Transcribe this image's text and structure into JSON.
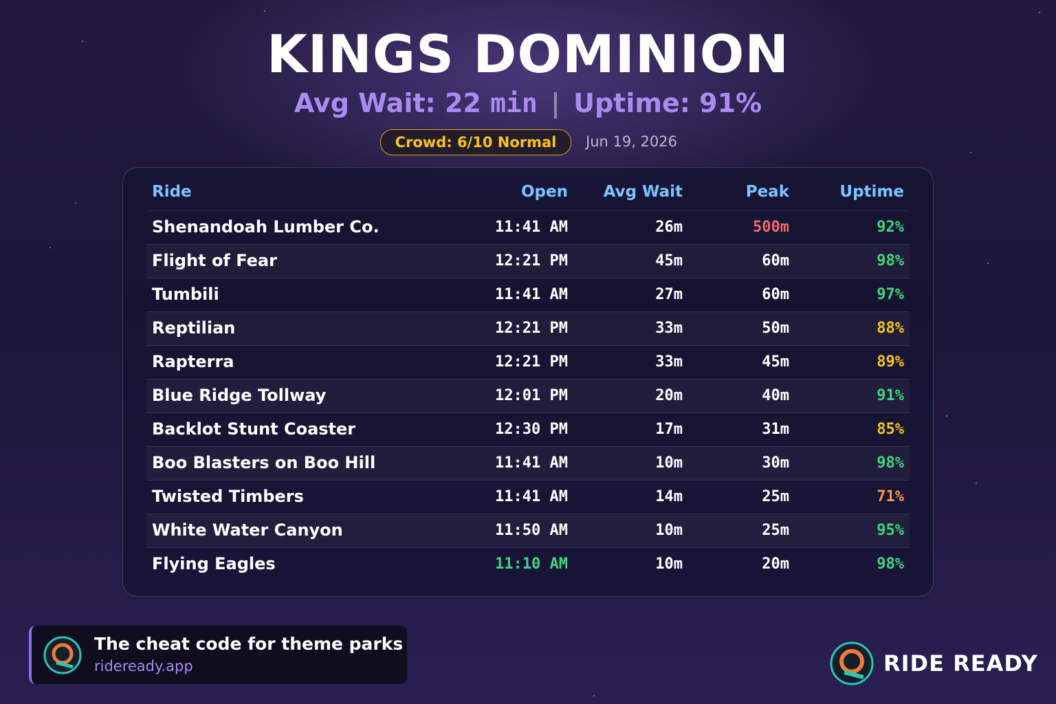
{
  "header": {
    "title": "KINGS DOMINION",
    "stats": [
      "Avg Wait: 22",
      "min",
      "|",
      "Uptime: 91%"
    ],
    "crowd": "Crowd: 6/10 Normal",
    "date": "Jun 19, 2026"
  },
  "table": {
    "columns": [
      "Ride",
      "Open",
      "Avg Wait",
      "Peak",
      "Uptime"
    ],
    "rows": [
      {
        "cells": [
          "Shenandoah Lumber Co.",
          "11:41 AM",
          "26m",
          "500m",
          "92%"
        ],
        "colors": [
          null,
          null,
          null,
          "#f06a6a",
          "#3fd67a"
        ]
      },
      {
        "cells": [
          "Flight of Fear",
          "12:21 PM",
          "45m",
          "60m",
          "98%"
        ],
        "colors": [
          null,
          null,
          null,
          null,
          "#3fd67a"
        ]
      },
      {
        "cells": [
          "Tumbili",
          "11:41 AM",
          "27m",
          "60m",
          "97%"
        ],
        "colors": [
          null,
          null,
          null,
          null,
          "#3fd67a"
        ]
      },
      {
        "cells": [
          "Reptilian",
          "12:21 PM",
          "33m",
          "50m",
          "88%"
        ],
        "colors": [
          null,
          null,
          null,
          null,
          "#f5c518"
        ]
      },
      {
        "cells": [
          "Rapterra",
          "12:21 PM",
          "33m",
          "45m",
          "89%"
        ],
        "colors": [
          null,
          null,
          null,
          null,
          "#f5c518"
        ]
      },
      {
        "cells": [
          "Blue Ridge Tollway",
          "12:01 PM",
          "20m",
          "40m",
          "91%"
        ],
        "colors": [
          null,
          null,
          null,
          null,
          "#3fd67a"
        ]
      },
      {
        "cells": [
          "Backlot Stunt Coaster",
          "12:30 PM",
          "17m",
          "31m",
          "85%"
        ],
        "colors": [
          null,
          null,
          null,
          null,
          "#f5c518"
        ]
      },
      {
        "cells": [
          "Boo Blasters on Boo Hill",
          "11:41 AM",
          "10m",
          "30m",
          "98%"
        ],
        "colors": [
          null,
          null,
          null,
          null,
          "#3fd67a"
        ]
      },
      {
        "cells": [
          "Twisted Timbers",
          "11:41 AM",
          "14m",
          "25m",
          "71%"
        ],
        "colors": [
          null,
          null,
          null,
          null,
          "#f59a45"
        ]
      },
      {
        "cells": [
          "White Water Canyon",
          "11:50 AM",
          "10m",
          "25m",
          "95%"
        ],
        "colors": [
          null,
          null,
          null,
          null,
          "#3fd67a"
        ]
      },
      {
        "cells": [
          "Flying Eagles",
          "11:10 AM",
          "10m",
          "20m",
          "98%"
        ],
        "colors": [
          null,
          "#3fd67a",
          null,
          null,
          "#3fd67a"
        ]
      }
    ]
  },
  "footer": {
    "tagline": "The cheat code for theme parks",
    "url": "rideready.app",
    "brand": "RIDE READY"
  }
}
